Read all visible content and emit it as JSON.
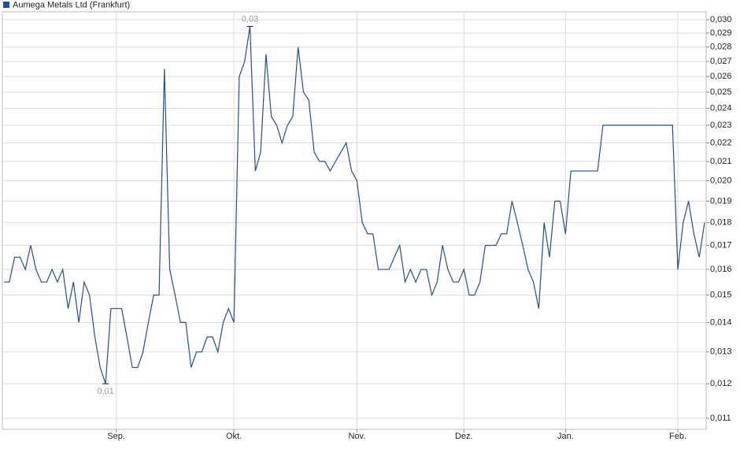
{
  "chart_data": {
    "type": "line",
    "legend_position": "top-left",
    "scale": "log",
    "grid": true,
    "annotations": {
      "high": "0,03",
      "low": "0,01"
    },
    "categories": [
      null,
      null,
      null,
      null,
      null,
      null,
      null,
      null,
      null,
      null,
      null,
      null,
      null,
      null,
      null,
      null,
      null,
      null,
      null,
      null,
      null,
      "Sep.",
      null,
      null,
      null,
      null,
      null,
      null,
      null,
      null,
      null,
      null,
      null,
      null,
      null,
      null,
      null,
      null,
      null,
      null,
      null,
      null,
      null,
      "Okt.",
      null,
      null,
      null,
      null,
      null,
      null,
      null,
      null,
      null,
      null,
      null,
      null,
      null,
      null,
      null,
      null,
      null,
      null,
      null,
      null,
      null,
      null,
      "Nov.",
      null,
      null,
      null,
      null,
      null,
      null,
      null,
      null,
      null,
      null,
      null,
      null,
      null,
      null,
      null,
      null,
      null,
      null,
      null,
      "Dez.",
      null,
      null,
      null,
      null,
      null,
      null,
      null,
      null,
      null,
      null,
      null,
      null,
      null,
      null,
      null,
      null,
      null,
      null,
      "Jan.",
      null,
      null,
      null,
      null,
      null,
      null,
      null,
      null,
      null,
      null,
      null,
      null,
      null,
      null,
      null,
      null,
      null,
      null,
      null,
      null,
      "Feb.",
      null,
      null,
      null,
      null,
      null
    ],
    "series": [
      {
        "name": "Aumega Metals Ltd (Frankfurt)",
        "color": "#1f4e9c",
        "values": [
          0.0155,
          0.0155,
          0.0165,
          0.0165,
          0.016,
          0.017,
          0.016,
          0.0155,
          0.0155,
          0.016,
          0.0155,
          0.016,
          0.0145,
          0.0155,
          0.014,
          0.0155,
          0.015,
          0.0135,
          0.0125,
          0.012,
          0.0145,
          0.0145,
          0.0145,
          0.0135,
          0.0125,
          0.0125,
          0.013,
          0.014,
          0.015,
          0.015,
          0.0265,
          0.016,
          0.015,
          0.014,
          0.014,
          0.0125,
          0.013,
          0.013,
          0.0135,
          0.0135,
          0.013,
          0.014,
          0.0145,
          0.014,
          0.026,
          0.027,
          0.0295,
          0.0205,
          0.0215,
          0.0275,
          0.0235,
          0.023,
          0.022,
          0.023,
          0.0235,
          0.028,
          0.025,
          0.0245,
          0.0215,
          0.021,
          0.021,
          0.0205,
          0.021,
          0.0215,
          0.022,
          0.0205,
          0.02,
          0.018,
          0.0175,
          0.0175,
          0.016,
          0.016,
          0.016,
          0.0165,
          0.017,
          0.0155,
          0.016,
          0.0155,
          0.016,
          0.016,
          0.015,
          0.0155,
          0.017,
          0.016,
          0.0155,
          0.0155,
          0.016,
          0.015,
          0.015,
          0.0155,
          0.017,
          0.017,
          0.017,
          0.0175,
          0.0175,
          0.019,
          0.018,
          0.017,
          0.016,
          0.0155,
          0.0145,
          0.018,
          0.0165,
          0.019,
          0.019,
          0.0175,
          0.0205,
          0.0205,
          0.0205,
          0.0205,
          0.0205,
          0.0205,
          0.023,
          0.023,
          0.023,
          0.023,
          0.023,
          0.023,
          0.023,
          0.023,
          0.023,
          0.023,
          0.023,
          0.023,
          0.023,
          0.023,
          0.016,
          0.018,
          0.019,
          0.0175,
          0.0165,
          0.018
        ]
      }
    ],
    "ylim": [
      0.0107,
      0.0306
    ],
    "yticks": [
      {
        "value": 0.011,
        "label": "0,011"
      },
      {
        "value": 0.012,
        "label": "0,012"
      },
      {
        "value": 0.013,
        "label": "0,013"
      },
      {
        "value": 0.014,
        "label": "0,014"
      },
      {
        "value": 0.015,
        "label": "0,015"
      },
      {
        "value": 0.016,
        "label": "0,016"
      },
      {
        "value": 0.017,
        "label": "0,017"
      },
      {
        "value": 0.018,
        "label": "0,018"
      },
      {
        "value": 0.019,
        "label": "0,019"
      },
      {
        "value": 0.02,
        "label": "0,020"
      },
      {
        "value": 0.021,
        "label": "0,021"
      },
      {
        "value": 0.022,
        "label": "0,022"
      },
      {
        "value": 0.023,
        "label": "0,023"
      },
      {
        "value": 0.024,
        "label": "0,024"
      },
      {
        "value": 0.025,
        "label": "0,025"
      },
      {
        "value": 0.026,
        "label": "0,026"
      },
      {
        "value": 0.027,
        "label": "0,027"
      },
      {
        "value": 0.028,
        "label": "0,028"
      },
      {
        "value": 0.029,
        "label": "0,029"
      },
      {
        "value": 0.03,
        "label": "0,030"
      }
    ]
  }
}
